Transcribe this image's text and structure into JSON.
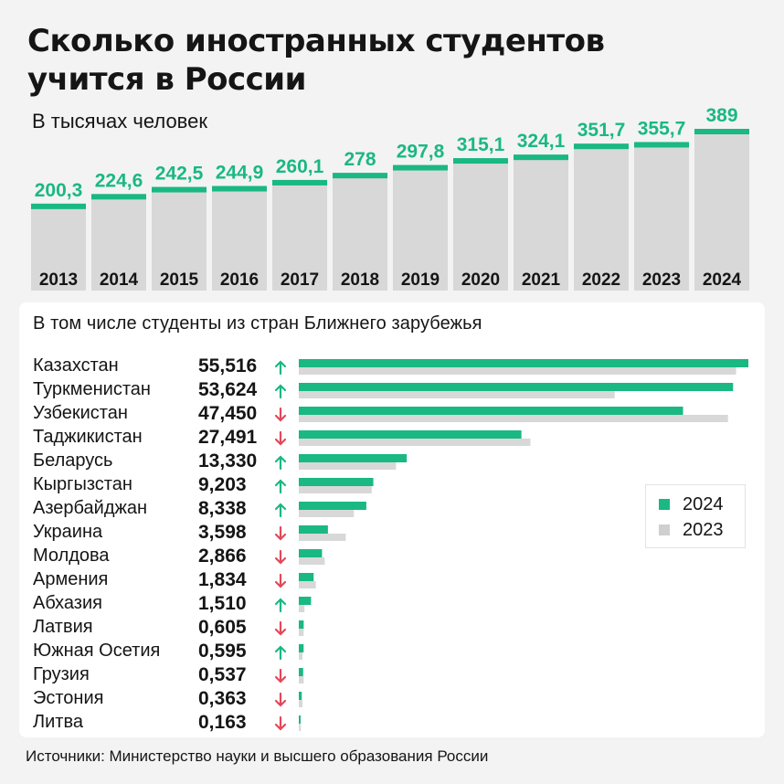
{
  "header": {
    "title_line1": "Сколько иностранных студентов",
    "title_line2": "учится в России",
    "subtitle": "В тысячах человек"
  },
  "colors": {
    "accent": "#1ab883",
    "bar_gray": "#d8d8d8",
    "legend_gray": "#cfcfcf",
    "arrow_up": "#1ab883",
    "arrow_down": "#e3485a"
  },
  "chart_data": [
    {
      "type": "bar",
      "title": "Сколько иностранных студентов учится в России",
      "subtitle": "В тысячах человек",
      "categories": [
        "2013",
        "2014",
        "2015",
        "2016",
        "2017",
        "2018",
        "2019",
        "2020",
        "2021",
        "2022",
        "2023",
        "2024"
      ],
      "values": [
        200.3,
        224.6,
        242.5,
        244.9,
        260.1,
        278,
        297.8,
        315.1,
        324.1,
        351.7,
        355.7,
        389
      ],
      "value_labels": [
        "200,3",
        "224,6",
        "242,5",
        "244,9",
        "260,1",
        "278",
        "297,8",
        "315,1",
        "324,1",
        "351,7",
        "355,7",
        "389"
      ],
      "xlabel": "",
      "ylabel": "",
      "ylim": [
        0,
        389
      ]
    },
    {
      "type": "bar",
      "orientation": "horizontal",
      "title": "В том числе студенты из стран Ближнего зарубежья",
      "categories": [
        "Казахстан",
        "Туркменистан",
        "Узбекистан",
        "Таджикистан",
        "Беларусь",
        "Кыргызстан",
        "Азербайджан",
        "Украина",
        "Молдова",
        "Армения",
        "Абхазия",
        "Латвия",
        "Южная Осетия",
        "Грузия",
        "Эстония",
        "Литва"
      ],
      "value_labels": [
        "55,516",
        "53,624",
        "47,450",
        "27,491",
        "13,330",
        "9,203",
        "8,338",
        "3,598",
        "2,866",
        "1,834",
        "1,510",
        "0,605",
        "0,595",
        "0,537",
        "0,363",
        "0,163"
      ],
      "trend": [
        "up",
        "up",
        "down",
        "down",
        "up",
        "up",
        "up",
        "down",
        "down",
        "down",
        "up",
        "down",
        "up",
        "down",
        "down",
        "down"
      ],
      "series": [
        {
          "name": "2024",
          "values": [
            55.516,
            53.624,
            47.45,
            27.491,
            13.33,
            9.203,
            8.338,
            3.598,
            2.866,
            1.834,
            1.51,
            0.605,
            0.595,
            0.537,
            0.363,
            0.163
          ]
        },
        {
          "name": "2023",
          "values": [
            54.0,
            39.0,
            53.0,
            28.6,
            12.0,
            9.0,
            6.8,
            5.8,
            3.2,
            2.1,
            0.7,
            0.6,
            0.45,
            0.6,
            0.45,
            0.25
          ]
        }
      ],
      "legend": [
        "2024",
        "2023"
      ],
      "legend_position": "right"
    }
  ],
  "source": "Источники: Министерство науки и высшего образования России"
}
